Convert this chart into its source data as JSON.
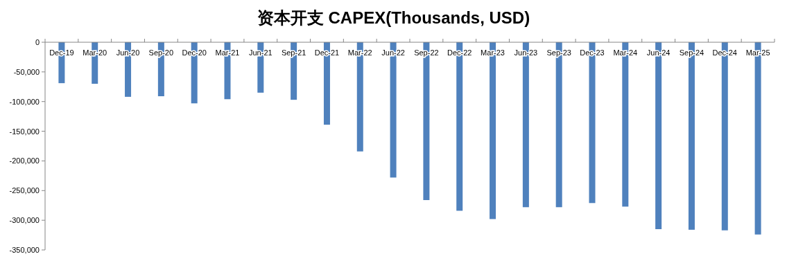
{
  "chart_data": {
    "type": "bar",
    "title": "资本开支 CAPEX(Thousands, USD)",
    "categories": [
      "Dec-19",
      "Mar-20",
      "Jun-20",
      "Sep-20",
      "Dec-20",
      "Mar-21",
      "Jun-21",
      "Sep-21",
      "Dec-21",
      "Mar-22",
      "Jun-22",
      "Sep-22",
      "Dec-22",
      "Mar-23",
      "Jun-23",
      "Sep-23",
      "Dec-23",
      "Mar-24",
      "Jun-24",
      "Sep-24",
      "Dec-24",
      "Mar-25"
    ],
    "values": [
      -69000,
      -70000,
      -92000,
      -91000,
      -103000,
      -96000,
      -85000,
      -97000,
      -139000,
      -184000,
      -228000,
      -266000,
      -284000,
      -298000,
      -278000,
      -278000,
      -271000,
      -277000,
      -315000,
      -316000,
      -317000,
      -324000
    ],
    "color": "#4f81bd",
    "ylim": [
      -350000,
      0
    ],
    "yticks": [
      {
        "value": -350000,
        "label": "-350,000"
      },
      {
        "value": -300000,
        "label": "-300,000"
      },
      {
        "value": -250000,
        "label": "-250,000"
      },
      {
        "value": -200000,
        "label": "-200,000"
      },
      {
        "value": -150000,
        "label": "-150,000"
      },
      {
        "value": -100000,
        "label": "-100,000"
      },
      {
        "value": -50000,
        "label": "-50,000"
      },
      0
    ],
    "grid": false
  }
}
